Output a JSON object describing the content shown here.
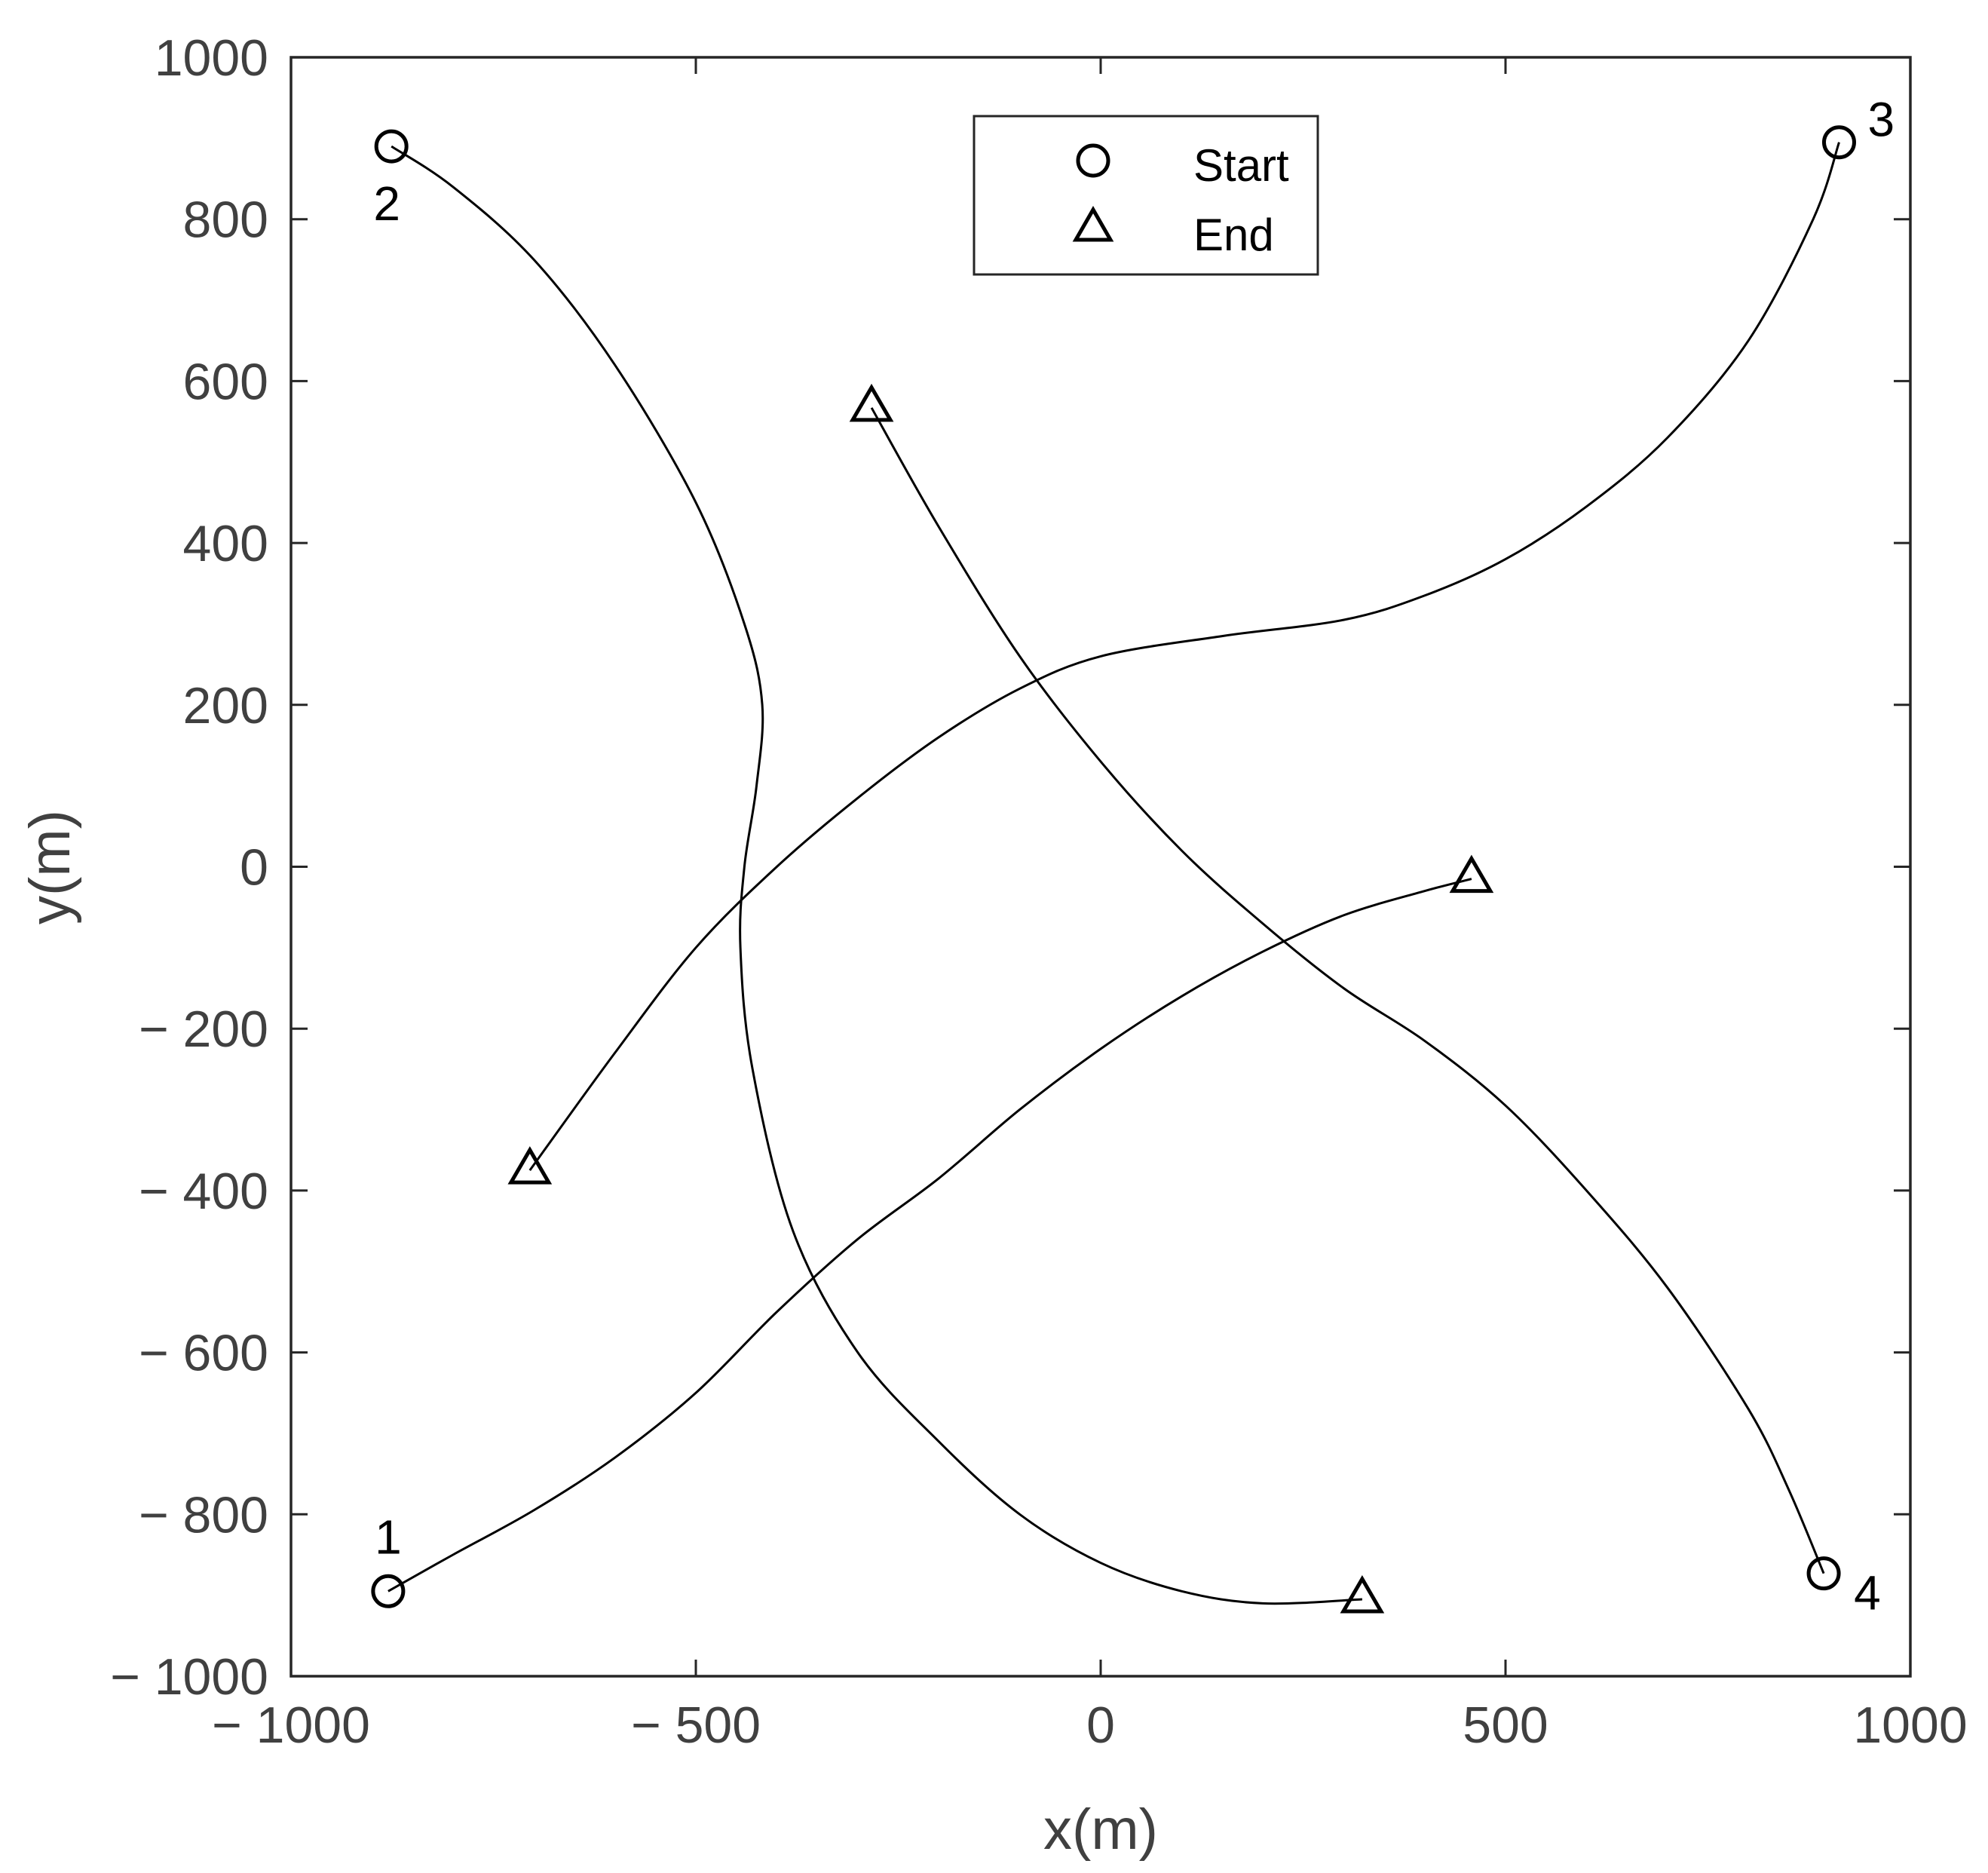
{
  "chart_data": {
    "type": "line",
    "title": "",
    "xlabel": "x(m)",
    "ylabel": "y(m)",
    "xlim": [
      -1000,
      1000
    ],
    "ylim": [
      -1000,
      1000
    ],
    "x_ticks": [
      -1000,
      -500,
      0,
      500,
      1000
    ],
    "y_ticks": [
      -1000,
      -800,
      -600,
      -400,
      -200,
      0,
      200,
      400,
      600,
      800,
      1000
    ],
    "x_tick_labels": [
      "− 1000",
      "− 500",
      "0",
      "500",
      "1000"
    ],
    "y_tick_labels": [
      "− 1000",
      "− 800",
      "− 600",
      "− 400",
      "− 200",
      "0",
      "200",
      "400",
      "600",
      "800",
      "1000"
    ],
    "grid": false,
    "legend": {
      "position": "top-center",
      "entries": [
        {
          "label": "Start",
          "marker": "circle"
        },
        {
          "label": "End",
          "marker": "triangle"
        }
      ]
    },
    "line_color": "#000000",
    "series": [
      {
        "label": "1",
        "points": [
          [
            -880,
            -895
          ],
          [
            -800,
            -850
          ],
          [
            -700,
            -795
          ],
          [
            -600,
            -730
          ],
          [
            -500,
            -650
          ],
          [
            -400,
            -550
          ],
          [
            -300,
            -460
          ],
          [
            -200,
            -385
          ],
          [
            -100,
            -300
          ],
          [
            0,
            -225
          ],
          [
            100,
            -160
          ],
          [
            200,
            -105
          ],
          [
            300,
            -60
          ],
          [
            400,
            -30
          ],
          [
            458,
            -15
          ]
        ]
      },
      {
        "label": "2",
        "points": [
          [
            -876,
            890
          ],
          [
            -800,
            840
          ],
          [
            -700,
            750
          ],
          [
            -600,
            620
          ],
          [
            -500,
            450
          ],
          [
            -440,
            300
          ],
          [
            -418,
            200
          ],
          [
            -425,
            100
          ],
          [
            -440,
            0
          ],
          [
            -445,
            -100
          ],
          [
            -430,
            -250
          ],
          [
            -380,
            -450
          ],
          [
            -300,
            -600
          ],
          [
            -200,
            -710
          ],
          [
            -100,
            -800
          ],
          [
            0,
            -860
          ],
          [
            100,
            -895
          ],
          [
            200,
            -910
          ],
          [
            323,
            -905
          ]
        ]
      },
      {
        "label": "3",
        "points": [
          [
            912,
            895
          ],
          [
            880,
            800
          ],
          [
            800,
            650
          ],
          [
            700,
            530
          ],
          [
            600,
            445
          ],
          [
            500,
            380
          ],
          [
            400,
            335
          ],
          [
            300,
            305
          ],
          [
            150,
            285
          ],
          [
            0,
            260
          ],
          [
            -100,
            220
          ],
          [
            -200,
            160
          ],
          [
            -300,
            85
          ],
          [
            -400,
            0
          ],
          [
            -500,
            -100
          ],
          [
            -600,
            -230
          ],
          [
            -705,
            -375
          ]
        ]
      },
      {
        "label": "4",
        "points": [
          [
            893,
            -873
          ],
          [
            850,
            -770
          ],
          [
            800,
            -670
          ],
          [
            700,
            -520
          ],
          [
            600,
            -400
          ],
          [
            500,
            -295
          ],
          [
            400,
            -215
          ],
          [
            300,
            -150
          ],
          [
            200,
            -70
          ],
          [
            100,
            20
          ],
          [
            0,
            130
          ],
          [
            -100,
            260
          ],
          [
            -200,
            420
          ],
          [
            -283,
            567
          ]
        ]
      }
    ]
  }
}
